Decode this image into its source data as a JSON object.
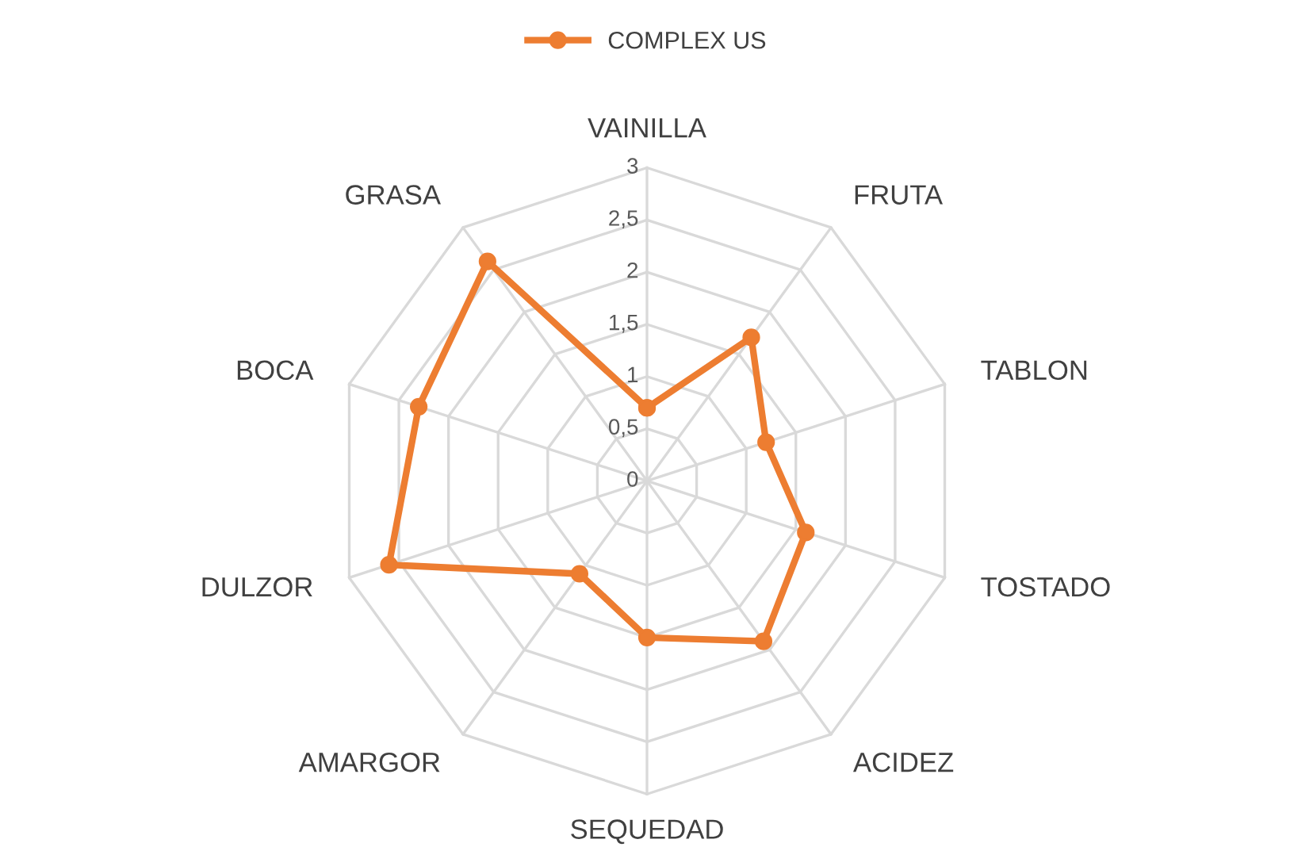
{
  "chart_data": {
    "type": "radar",
    "categories": [
      "VAINILLA",
      "FRUTA",
      "TABLON",
      "TOSTADO",
      "ACIDEZ",
      "SEQUEDAD",
      "AMARGOR",
      "DULZOR",
      "BOCA",
      "GRASA"
    ],
    "series": [
      {
        "name": "COMPLEX US",
        "color": "#ed7d31",
        "values": [
          0.7,
          1.7,
          1.2,
          1.6,
          1.9,
          1.5,
          1.1,
          2.6,
          2.3,
          2.6
        ]
      }
    ],
    "ylim": [
      0,
      3
    ],
    "yticks": [
      0,
      {
        "value": 0.5,
        "label": "0,5"
      },
      1,
      {
        "value": 1.5,
        "label": "1,5"
      },
      2,
      {
        "value": 2.5,
        "label": "2,5"
      },
      3
    ],
    "grid": true,
    "legend": "top",
    "marker": "circle",
    "line_style": "solid"
  }
}
